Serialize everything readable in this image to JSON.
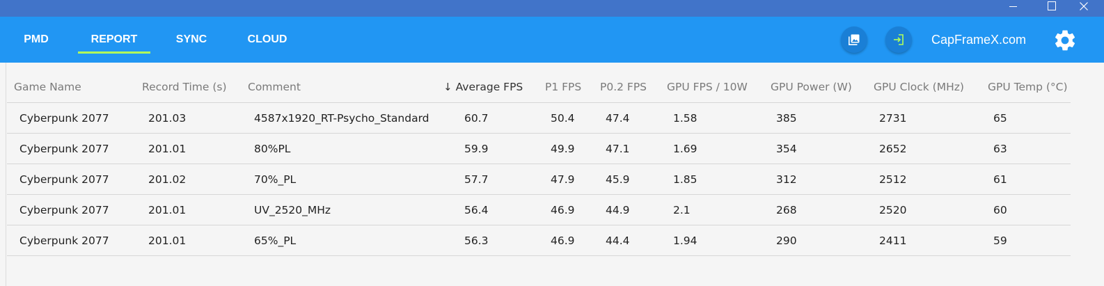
{
  "window": {
    "minimize_icon": "minimize-icon",
    "maximize_icon": "maximize-icon",
    "close_icon": "close-icon"
  },
  "nav": {
    "tabs": [
      {
        "label": "PMD"
      },
      {
        "label": "REPORT"
      },
      {
        "label": "SYNC"
      },
      {
        "label": "CLOUD"
      }
    ],
    "active_tab": "REPORT",
    "site_link": "CapFrameX.com",
    "buttons": [
      "screenshot-icon",
      "login-icon",
      "gear-icon"
    ],
    "accent": "#2196f3",
    "active_underline_color": "#b2ff59"
  },
  "table": {
    "sort_arrow": "↓",
    "sorted_column": "Average FPS",
    "columns": [
      "Game Name",
      "Record Time (s)",
      "Comment",
      "Average FPS",
      "P1 FPS",
      "P0.2 FPS",
      "GPU FPS / 10W",
      "GPU Power (W)",
      "GPU Clock (MHz)",
      "GPU Temp (°C)"
    ],
    "rows": [
      [
        "Cyberpunk 2077",
        "201.03",
        "4587x1920_RT-Psycho_Standard",
        "60.7",
        "50.4",
        "47.4",
        "1.58",
        "385",
        "2731",
        "65"
      ],
      [
        "Cyberpunk 2077",
        "201.01",
        "80%PL",
        "59.9",
        "49.9",
        "47.1",
        "1.69",
        "354",
        "2652",
        "63"
      ],
      [
        "Cyberpunk 2077",
        "201.02",
        "70%_PL",
        "57.7",
        "47.9",
        "45.9",
        "1.85",
        "312",
        "2512",
        "61"
      ],
      [
        "Cyberpunk 2077",
        "201.01",
        "UV_2520_MHz",
        "56.4",
        "46.9",
        "44.9",
        "2.1",
        "268",
        "2520",
        "60"
      ],
      [
        "Cyberpunk 2077",
        "201.01",
        "65%_PL",
        "56.3",
        "46.9",
        "44.4",
        "1.94",
        "290",
        "2411",
        "59"
      ]
    ]
  }
}
